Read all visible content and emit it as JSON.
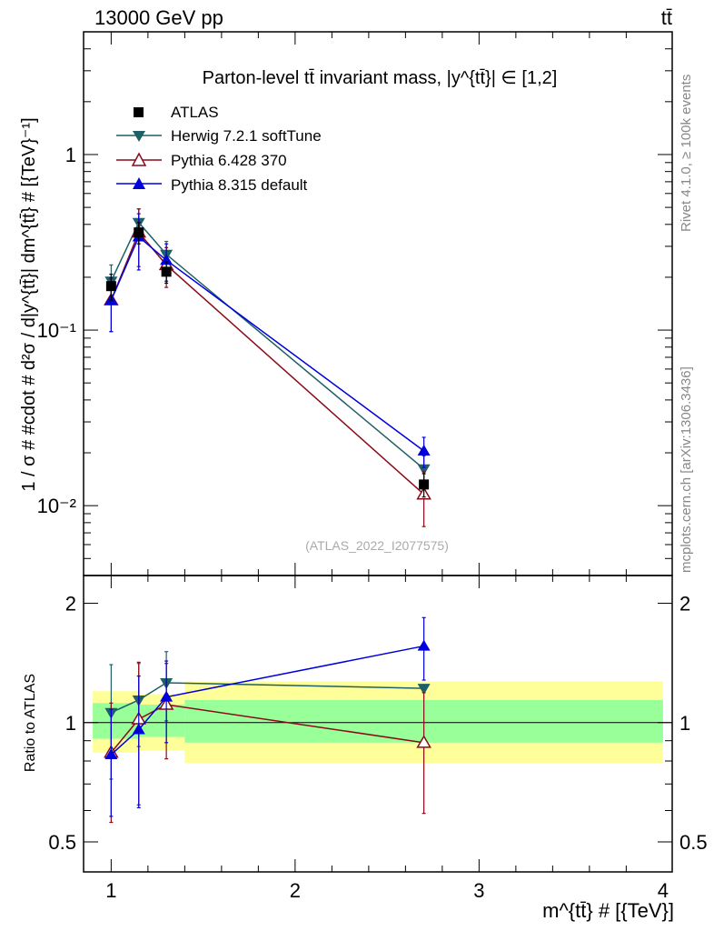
{
  "header": {
    "left": "13000 GeV pp",
    "right": "tt̄"
  },
  "side_labels": {
    "rivet": "Rivet 4.1.0, ≥ 100k events",
    "mcplots": "mcplots.cern.ch [arXiv:1306.3436]"
  },
  "colors": {
    "atlas": "#000000",
    "herwig": "#1f5f66",
    "pythia6": "#8b0a1a",
    "pythia8": "#0000dd",
    "band_inner": "#99ff99",
    "band_outer": "#ffff99"
  },
  "chart_data": [
    {
      "type": "line",
      "panel": "main",
      "title": "Parton-level tt̄ invariant mass, |y^{tt̄}| ∈ [1,2]",
      "ylabel": "1 / σ # #cdot # d²σ / d|y^{tt̄}| dm^{tt̄} # [{TeV}⁻¹]",
      "yscale": "log",
      "ylim": [
        0.004,
        5
      ],
      "xlim": [
        0.85,
        4.05
      ],
      "watermark": "(ATLAS_2022_I2077575)",
      "y_tick_labels": [
        "10⁻²",
        "10⁻¹",
        "1"
      ],
      "x": [
        1.0,
        1.15,
        1.3,
        2.7
      ],
      "series": [
        {
          "name": "ATLAS",
          "marker": "square",
          "values": [
            0.178,
            0.36,
            0.215,
            0.0132
          ],
          "err_up": [
            0.03,
            0.05,
            0.03,
            0.002
          ],
          "err_dn": [
            0.03,
            0.05,
            0.03,
            0.002
          ]
        },
        {
          "name": "Herwig 7.2.1 softTune",
          "marker": "triangle-down",
          "values": [
            0.19,
            0.41,
            0.27,
            0.0162
          ],
          "err_up": [
            0.045,
            0.08,
            0.05,
            0.003
          ],
          "err_dn": [
            0.045,
            0.08,
            0.05,
            0.003
          ]
        },
        {
          "name": "Pythia 6.428 370",
          "marker": "triangle-up-open",
          "values": [
            0.148,
            0.36,
            0.235,
            0.0116
          ],
          "err_up": [
            0.05,
            0.13,
            0.06,
            0.004
          ],
          "err_dn": [
            0.05,
            0.13,
            0.06,
            0.004
          ]
        },
        {
          "name": "Pythia 8.315 default",
          "marker": "triangle-up",
          "values": [
            0.148,
            0.34,
            0.25,
            0.0205
          ],
          "err_up": [
            0.05,
            0.12,
            0.06,
            0.004
          ],
          "err_dn": [
            0.05,
            0.12,
            0.06,
            0.004
          ]
        }
      ]
    },
    {
      "type": "line",
      "panel": "ratio",
      "ylabel": "Ratio to ATLAS",
      "xlabel": "m^{tt̄} # [{TeV}]",
      "ylim": [
        0.42,
        2.35
      ],
      "xlim": [
        0.85,
        4.05
      ],
      "x_tick_labels": [
        "1",
        "2",
        "3",
        "4"
      ],
      "y_tick_labels": [
        "0.5",
        "1",
        "2"
      ],
      "x": [
        1.0,
        1.15,
        1.3,
        2.7
      ],
      "bands": [
        {
          "x_from": 0.9,
          "x_to": 1.15,
          "inner": [
            0.91,
            1.12
          ],
          "outer": [
            0.84,
            1.2
          ]
        },
        {
          "x_from": 1.15,
          "x_to": 1.4,
          "inner": [
            0.92,
            1.11
          ],
          "outer": [
            0.85,
            1.18
          ]
        },
        {
          "x_from": 1.4,
          "x_to": 4.0,
          "inner": [
            0.89,
            1.14
          ],
          "outer": [
            0.79,
            1.27
          ]
        }
      ],
      "series": [
        {
          "name": "Herwig 7.2.1 softTune",
          "marker": "triangle-down",
          "values": [
            1.06,
            1.14,
            1.26,
            1.22
          ],
          "err_up": [
            0.34,
            0.27,
            0.25,
            0.0
          ],
          "err_dn": [
            0.34,
            0.27,
            0.25,
            0.0
          ]
        },
        {
          "name": "Pythia 6.428 370",
          "marker": "triangle-up-open",
          "values": [
            0.84,
            1.02,
            1.11,
            0.89
          ],
          "err_up": [
            0.28,
            0.4,
            0.3,
            0.3
          ],
          "err_dn": [
            0.28,
            0.4,
            0.3,
            0.3
          ]
        },
        {
          "name": "Pythia 8.315 default",
          "marker": "triangle-up",
          "values": [
            0.83,
            0.96,
            1.16,
            1.56
          ],
          "err_up": [
            0.25,
            0.35,
            0.27,
            0.28
          ],
          "err_dn": [
            0.25,
            0.35,
            0.27,
            0.28
          ]
        }
      ]
    }
  ]
}
